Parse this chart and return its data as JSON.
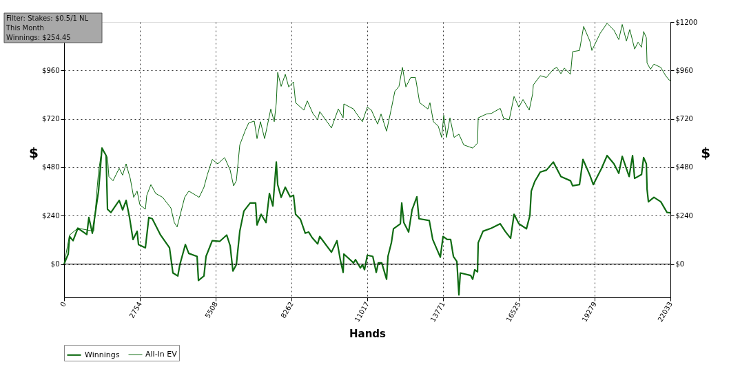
{
  "chart_data": {
    "type": "line",
    "xlabel": "Hands",
    "ylabel": "$",
    "y2label": "$",
    "annotations": [
      "Filter: Stakes: $0.5/1 NL",
      "This Month",
      "Winnings: $254.45"
    ],
    "xlim": [
      0,
      22033
    ],
    "xticks": [
      0,
      2754,
      5508,
      8262,
      11017,
      13771,
      16525,
      19279,
      22033
    ],
    "ylim": [
      -165,
      1200
    ],
    "yticks": [
      {
        "value": 0,
        "label": "$0"
      },
      {
        "value": 240,
        "label": "$240"
      },
      {
        "value": 480,
        "label": "$480"
      },
      {
        "value": 720,
        "label": "$720"
      },
      {
        "value": 960,
        "label": "$960"
      }
    ],
    "y2lim": [
      -165,
      1200
    ],
    "y2ticks": [
      {
        "value": 0,
        "label": "$0"
      },
      {
        "value": 240,
        "label": "$240"
      },
      {
        "value": 480,
        "label": "$480"
      },
      {
        "value": 720,
        "label": "$720"
      },
      {
        "value": 960,
        "label": "$960"
      },
      {
        "value": 1200,
        "label": "$1200"
      }
    ],
    "grid": true,
    "legend": "bottom left",
    "marker": "none",
    "line_style": "solid",
    "ref_lines": [
      {
        "axis": "y",
        "value": 0,
        "color": "#000000"
      }
    ],
    "series": [
      {
        "name": "Winnings",
        "color": "#0f6b12",
        "x": [
          0,
          150,
          200,
          326,
          501,
          826,
          901,
          1027,
          1152,
          1252,
          1377,
          1527,
          1578,
          1703,
          2003,
          2128,
          2254,
          2379,
          2504,
          2654,
          2704,
          2955,
          3080,
          3205,
          3506,
          3831,
          3956,
          4132,
          4207,
          4407,
          4532,
          4833,
          4883,
          5083,
          5158,
          5384,
          5659,
          5909,
          6035,
          6135,
          6260,
          6385,
          6535,
          6761,
          6961,
          7011,
          7161,
          7337,
          7462,
          7587,
          7712,
          7762,
          7888,
          8038,
          8213,
          8338,
          8413,
          8589,
          8764,
          8889,
          9014,
          9215,
          9290,
          9716,
          9916,
          10041,
          10141,
          10166,
          10517,
          10592,
          10767,
          10842,
          10917,
          11018,
          11218,
          11343,
          11418,
          11543,
          11719,
          11769,
          11894,
          11969,
          12220,
          12270,
          12345,
          12520,
          12645,
          12820,
          12896,
          13271,
          13396,
          13672,
          13772,
          13922,
          14047,
          14148,
          14273,
          14348,
          14398,
          14774,
          14849,
          14924,
          15024,
          15049,
          15224,
          15525,
          15850,
          16026,
          16226,
          16351,
          16526,
          16802,
          16927,
          16977,
          17102,
          17303,
          17528,
          17778,
          18054,
          18404,
          18479,
          18730,
          18855,
          19105,
          19230,
          19531,
          19732,
          19982,
          20157,
          20282,
          20533,
          20658,
          20733,
          20984,
          21059,
          21159,
          21184,
          21234,
          21434,
          21684,
          21910,
          22033
        ],
        "values": [
          0,
          50,
          137,
          116,
          178,
          147,
          231,
          153,
          269,
          362,
          575,
          538,
          272,
          256,
          316,
          269,
          316,
          231,
          122,
          163,
          97,
          81,
          231,
          225,
          144,
          81,
          -44,
          -59,
          -3,
          97,
          53,
          38,
          -81,
          -59,
          38,
          116,
          113,
          144,
          91,
          -34,
          -3,
          163,
          263,
          303,
          303,
          194,
          247,
          206,
          350,
          288,
          506,
          394,
          331,
          381,
          334,
          341,
          247,
          222,
          153,
          159,
          131,
          100,
          137,
          59,
          116,
          19,
          -41,
          50,
          6,
          22,
          -19,
          -3,
          -28,
          44,
          38,
          -41,
          6,
          6,
          -75,
          38,
          106,
          175,
          200,
          303,
          206,
          159,
          269,
          334,
          225,
          216,
          122,
          34,
          137,
          122,
          122,
          38,
          13,
          -153,
          -44,
          -56,
          -75,
          -28,
          -38,
          106,
          163,
          178,
          200,
          163,
          128,
          247,
          200,
          175,
          241,
          362,
          409,
          456,
          466,
          506,
          434,
          413,
          388,
          394,
          519,
          441,
          394,
          475,
          538,
          497,
          450,
          534,
          434,
          538,
          425,
          444,
          528,
          497,
          372,
          309,
          331,
          309,
          256,
          254
        ]
      },
      {
        "name": "All-In EV",
        "color": "#0f6b12",
        "x": [
          0,
          200,
          501,
          1077,
          1202,
          1252,
          1377,
          1578,
          1628,
          1778,
          2003,
          2128,
          2254,
          2404,
          2529,
          2654,
          2754,
          2955,
          3005,
          3155,
          3330,
          3581,
          3881,
          4006,
          4107,
          4382,
          4532,
          4908,
          5083,
          5208,
          5384,
          5584,
          5834,
          6035,
          6160,
          6260,
          6385,
          6586,
          6711,
          6911,
          7011,
          7136,
          7287,
          7512,
          7637,
          7712,
          7762,
          7888,
          8038,
          8163,
          8338,
          8413,
          8714,
          8839,
          9039,
          9215,
          9290,
          9716,
          9966,
          10141,
          10166,
          10517,
          10667,
          10842,
          11018,
          11168,
          11393,
          11518,
          11719,
          11894,
          12019,
          12169,
          12295,
          12420,
          12595,
          12770,
          12921,
          13221,
          13296,
          13421,
          13597,
          13722,
          13797,
          13897,
          14022,
          14173,
          14348,
          14523,
          14849,
          15024,
          15049,
          15350,
          15525,
          15850,
          15975,
          16176,
          16351,
          16526,
          16677,
          16902,
          17027,
          17052,
          17303,
          17528,
          17778,
          17904,
          18054,
          18179,
          18404,
          18479,
          18730,
          18880,
          19105,
          19180,
          19481,
          19732,
          19982,
          20157,
          20282,
          20433,
          20558,
          20733,
          20858,
          20984,
          21059,
          21159,
          21184,
          21309,
          21434,
          21684,
          21860,
          21985,
          22033
        ],
        "values": [
          0,
          144,
          178,
          163,
          378,
          456,
          575,
          528,
          434,
          413,
          475,
          441,
          497,
          425,
          331,
          362,
          294,
          272,
          341,
          394,
          350,
          331,
          278,
          206,
          184,
          331,
          362,
          331,
          381,
          444,
          519,
          497,
          528,
          466,
          388,
          413,
          591,
          663,
          700,
          709,
          622,
          706,
          622,
          769,
          706,
          800,
          950,
          881,
          941,
          878,
          903,
          800,
          763,
          809,
          747,
          716,
          756,
          675,
          769,
          725,
          794,
          769,
          738,
          706,
          778,
          763,
          694,
          744,
          659,
          772,
          856,
          881,
          975,
          878,
          925,
          925,
          800,
          769,
          800,
          706,
          684,
          628,
          738,
          628,
          725,
          628,
          644,
          591,
          575,
          600,
          725,
          744,
          747,
          772,
          722,
          716,
          831,
          778,
          816,
          763,
          844,
          888,
          934,
          925,
          966,
          975,
          944,
          972,
          941,
          1053,
          1059,
          1178,
          1106,
          1059,
          1144,
          1194,
          1159,
          1113,
          1188,
          1106,
          1163,
          1066,
          1100,
          1075,
          1153,
          1122,
          997,
          966,
          991,
          975,
          934,
          913,
          910
        ]
      }
    ]
  }
}
